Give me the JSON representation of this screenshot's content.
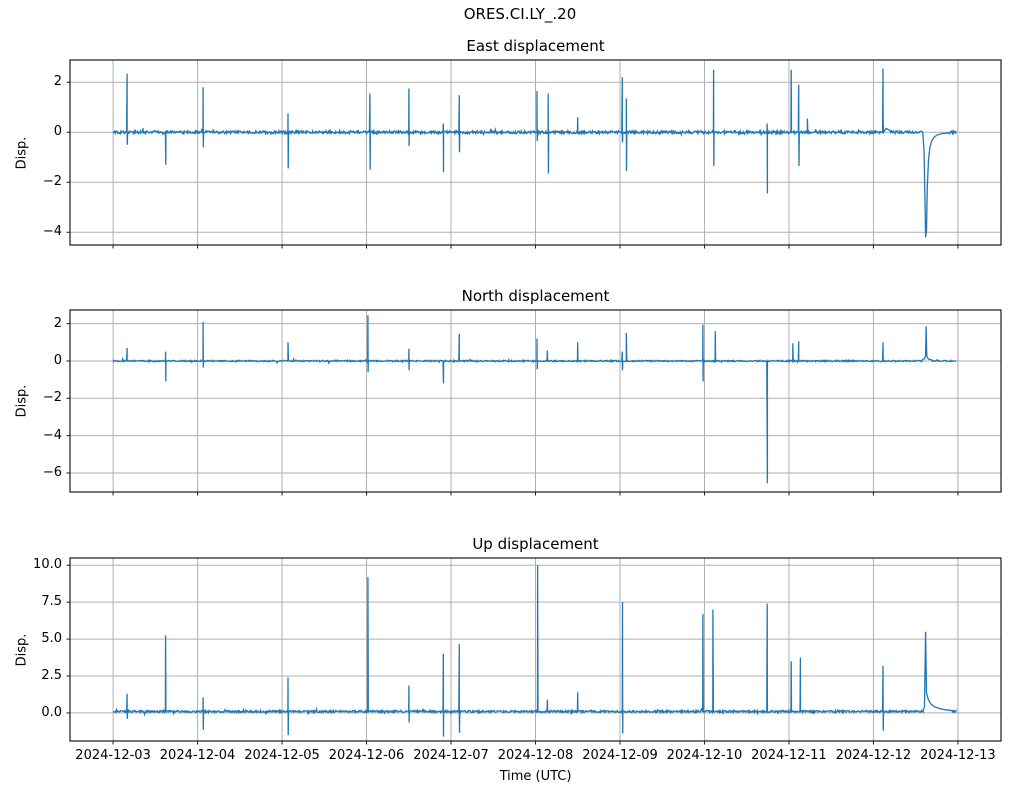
{
  "figure": {
    "suptitle": "ORES.CI.LY_.20",
    "xlabel": "Time (UTC)",
    "line_color": "#1f77b4",
    "grid_color": "#b0b0b0",
    "spine_color": "#1a1a1a",
    "background": "#ffffff"
  },
  "x_axis": {
    "t_unit": "days since 2024-12-03 00:00 UTC",
    "xlim_days": [
      -0.51,
      10.51
    ],
    "tick_positions_days": [
      0,
      1,
      2,
      3,
      4,
      5,
      6,
      7,
      8,
      9,
      10
    ],
    "tick_labels": [
      "2024-12-03",
      "2024-12-04",
      "2024-12-05",
      "2024-12-06",
      "2024-12-07",
      "2024-12-08",
      "2024-12-09",
      "2024-12-10",
      "2024-12-11",
      "2024-12-12",
      "2024-12-13"
    ]
  },
  "chart_data": [
    {
      "type": "line",
      "title": "East displacement",
      "ylabel": "Disp.",
      "ylim": [
        -4.51,
        2.89
      ],
      "yticks": [
        {
          "value": 2,
          "label": "2"
        },
        {
          "value": 0,
          "label": "0"
        },
        {
          "value": -2,
          "label": "−2"
        },
        {
          "value": -4,
          "label": "−4"
        }
      ],
      "baseline": 0.0,
      "noise": 0.055,
      "t_range": [
        0,
        9.98
      ],
      "events": [
        {
          "t": 0.166,
          "up": 2.35,
          "down": -0.5
        },
        {
          "t": 0.621,
          "down": -1.3
        },
        {
          "t": 1.065,
          "up": 1.8,
          "down": -0.6
        },
        {
          "t": 2.07,
          "up": 0.75,
          "down": -1.45
        },
        {
          "t": 3.04,
          "up": 1.55,
          "down": -1.5
        },
        {
          "t": 3.501,
          "up": 1.75,
          "down": -0.55
        },
        {
          "t": 3.909,
          "up": 0.35,
          "down": -1.6
        },
        {
          "t": 4.098,
          "up": 1.48,
          "down": -0.8
        },
        {
          "t": 5.018,
          "up": 1.65,
          "down": -0.35
        },
        {
          "t": 5.15,
          "up": 1.55,
          "down": -1.65
        },
        {
          "t": 5.5,
          "up": 0.6
        },
        {
          "t": 6.027,
          "up": 2.2,
          "down": -0.4
        },
        {
          "t": 6.075,
          "up": 1.35,
          "down": -1.55
        },
        {
          "t": 7.108,
          "up": 2.5,
          "down": -1.35
        },
        {
          "t": 7.742,
          "up": 0.35,
          "down": -2.45
        },
        {
          "t": 8.027,
          "up": 2.5
        },
        {
          "t": 8.116,
          "up": 1.9,
          "down": -1.35
        },
        {
          "t": 8.219,
          "up": 0.55
        },
        {
          "t": 9.113,
          "up": 2.55
        }
      ],
      "segments": [
        [
          [
            9.118,
            0.3
          ],
          [
            9.15,
            0.15
          ],
          [
            9.2,
            0.07
          ]
        ],
        [
          [
            9.585,
            -0.05
          ],
          [
            9.6,
            -0.8
          ],
          [
            9.612,
            -3.0
          ],
          [
            9.618,
            -4.2
          ],
          [
            9.628,
            -3.9
          ],
          [
            9.638,
            -2.2
          ],
          [
            9.652,
            -1.1
          ],
          [
            9.668,
            -0.6
          ],
          [
            9.69,
            -0.35
          ],
          [
            9.72,
            -0.18
          ],
          [
            9.76,
            -0.1
          ],
          [
            9.82,
            -0.05
          ],
          [
            9.9,
            -0.02
          ]
        ]
      ]
    },
    {
      "type": "line",
      "title": "North displacement",
      "ylabel": "Disp.",
      "ylim": [
        -7.02,
        2.73
      ],
      "yticks": [
        {
          "value": 2,
          "label": "2"
        },
        {
          "value": 0,
          "label": "0"
        },
        {
          "value": -2,
          "label": "−2"
        },
        {
          "value": -4,
          "label": "−4"
        },
        {
          "value": -6,
          "label": "−6"
        }
      ],
      "baseline": 0.0,
      "noise": 0.035,
      "t_range": [
        0,
        9.98
      ],
      "events": [
        {
          "t": 0.166,
          "up": 0.7
        },
        {
          "t": 0.621,
          "up": 0.5,
          "down": -1.1
        },
        {
          "t": 1.065,
          "up": 2.1,
          "down": -0.35
        },
        {
          "t": 2.07,
          "up": 1.0
        },
        {
          "t": 3.016,
          "up": 2.45,
          "down": -0.6
        },
        {
          "t": 3.501,
          "up": 0.65,
          "down": -0.5
        },
        {
          "t": 3.909,
          "down": -1.2
        },
        {
          "t": 4.098,
          "up": 1.45
        },
        {
          "t": 5.018,
          "up": 1.2,
          "down": -0.45
        },
        {
          "t": 5.141,
          "up": 0.55
        },
        {
          "t": 5.5,
          "up": 1.0
        },
        {
          "t": 6.027,
          "up": 0.5,
          "down": -0.5
        },
        {
          "t": 6.075,
          "up": 1.5
        },
        {
          "t": 6.981,
          "up": 1.95,
          "down": -1.1
        },
        {
          "t": 7.128,
          "up": 1.6
        },
        {
          "t": 7.742,
          "down": -6.55
        },
        {
          "t": 8.045,
          "up": 0.95
        },
        {
          "t": 8.116,
          "up": 1.05
        },
        {
          "t": 9.113,
          "up": 1.0
        }
      ],
      "segments": [
        [
          [
            9.58,
            0.06
          ],
          [
            9.605,
            0.12
          ],
          [
            9.618,
            0.3
          ],
          [
            9.624,
            1.85
          ],
          [
            9.632,
            0.25
          ],
          [
            9.65,
            0.1
          ],
          [
            9.7,
            0.04
          ]
        ]
      ]
    },
    {
      "type": "line",
      "title": "Up displacement",
      "ylabel": "Disp.",
      "ylim": [
        -1.9,
        10.49
      ],
      "yticks": [
        {
          "value": 10.0,
          "label": "10.0"
        },
        {
          "value": 7.5,
          "label": "7.5"
        },
        {
          "value": 5.0,
          "label": "5.0"
        },
        {
          "value": 2.5,
          "label": "2.5"
        },
        {
          "value": 0.0,
          "label": "0.0"
        }
      ],
      "baseline": 0.1,
      "noise": 0.07,
      "t_range": [
        0,
        9.98
      ],
      "events": [
        {
          "t": 0.166,
          "up": 1.3,
          "down": -0.4
        },
        {
          "t": 0.621,
          "up": 5.25
        },
        {
          "t": 1.065,
          "up": 1.05,
          "down": -1.15
        },
        {
          "t": 2.07,
          "up": 2.4,
          "down": -1.5
        },
        {
          "t": 3.016,
          "up": 9.2
        },
        {
          "t": 3.501,
          "up": 1.85,
          "down": -0.65
        },
        {
          "t": 3.909,
          "up": 4.0,
          "down": -1.6
        },
        {
          "t": 4.098,
          "up": 4.65,
          "down": -1.35
        },
        {
          "t": 5.025,
          "up": 10.0
        },
        {
          "t": 5.141,
          "up": 0.9
        },
        {
          "t": 5.5,
          "up": 1.4
        },
        {
          "t": 6.03,
          "up": 7.5,
          "down": -1.4
        },
        {
          "t": 6.981,
          "up": 6.7
        },
        {
          "t": 7.1,
          "up": 7.0
        },
        {
          "t": 7.742,
          "up": 7.4
        },
        {
          "t": 8.027,
          "up": 3.5
        },
        {
          "t": 8.135,
          "up": 3.75
        },
        {
          "t": 9.113,
          "up": 3.2,
          "down": -1.2
        }
      ],
      "segments": [
        [
          [
            9.59,
            0.2
          ],
          [
            9.605,
            0.45
          ],
          [
            9.617,
            5.5
          ],
          [
            9.628,
            1.35
          ],
          [
            9.65,
            0.9
          ],
          [
            9.68,
            0.6
          ],
          [
            9.72,
            0.42
          ],
          [
            9.78,
            0.3
          ],
          [
            9.85,
            0.22
          ],
          [
            9.93,
            0.16
          ]
        ]
      ]
    }
  ]
}
